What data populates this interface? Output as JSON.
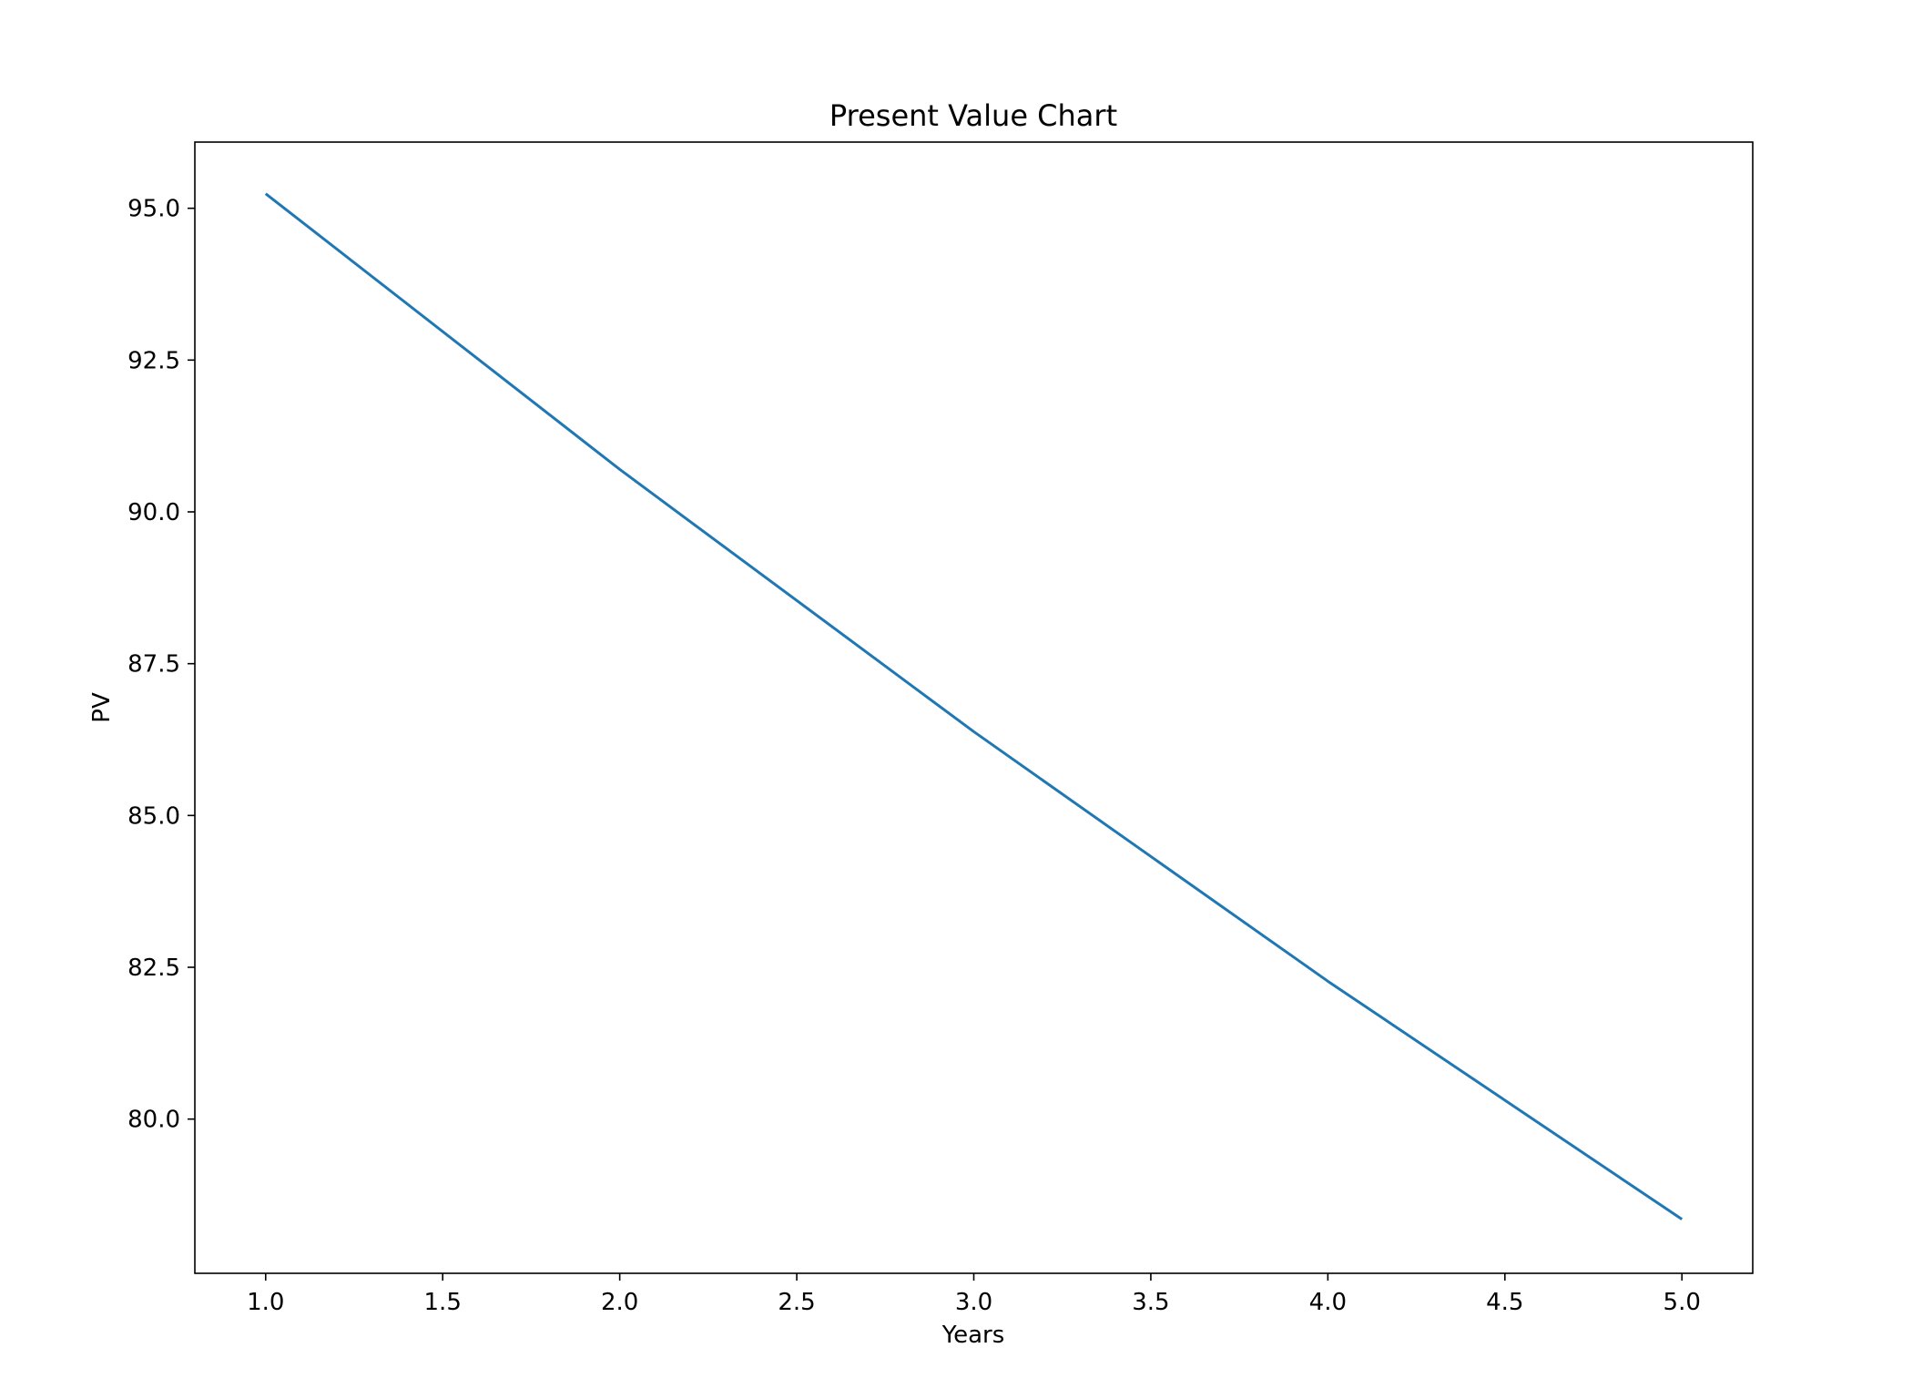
{
  "chart_data": {
    "type": "line",
    "title": "Present Value Chart",
    "xlabel": "Years",
    "ylabel": "PV",
    "xlim": [
      0.8,
      5.2
    ],
    "ylim": [
      77.46,
      96.09
    ],
    "xticks": [
      "1.0",
      "1.5",
      "2.0",
      "2.5",
      "3.0",
      "3.5",
      "4.0",
      "4.5",
      "5.0"
    ],
    "yticks": [
      "80.0",
      "82.5",
      "85.0",
      "87.5",
      "90.0",
      "92.5",
      "95.0"
    ],
    "grid": false,
    "legend": "none",
    "series": [
      {
        "color": "#1f77b4",
        "x": [
          1,
          2,
          3,
          4,
          5
        ],
        "y": [
          95.24,
          90.7,
          86.38,
          82.27,
          78.35
        ]
      }
    ]
  }
}
